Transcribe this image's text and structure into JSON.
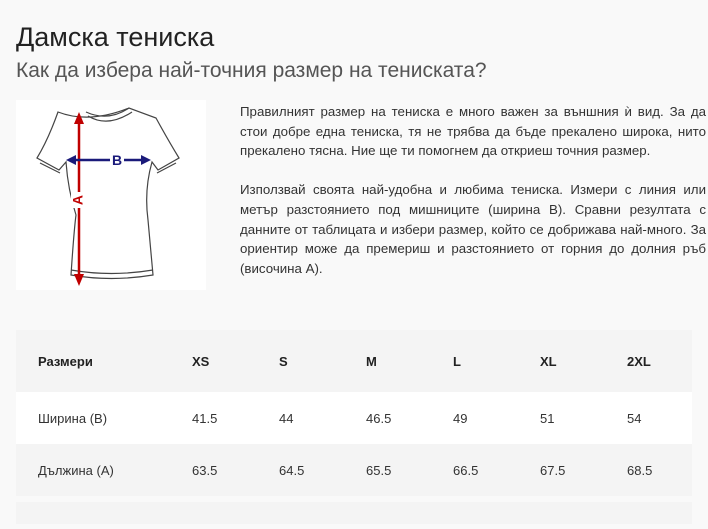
{
  "header": {
    "title": "Дамска тениска",
    "subtitle": "Как да избера най-точния размер на тениската?"
  },
  "diagram": {
    "label_a": "A",
    "label_b": "B",
    "color_a": "#c00000",
    "color_b": "#1a1a7a"
  },
  "text": {
    "p1": "Правилният размер на тениска е много важен за външния ѝ вид. За да стои добре една тениска, тя не трябва да бъде прекалено широка, нито прекалено тясна. Ние ще ти помогнем да откриеш точния размер.",
    "p2": "Използвай своята най-удобна и любима тениска. Измери с линия или метър разстоянието под мишниците (ширина B). Сравни резултата с данните от таблицата и избери размер, който се добрижава най-много. За ориентир може да премериш и разстоянието от горния до долния ръб (височина А)."
  },
  "table": {
    "headers": [
      "Размери",
      "XS",
      "S",
      "M",
      "L",
      "XL",
      "2XL"
    ],
    "rows": [
      [
        "Ширина (B)",
        "41.5",
        "44",
        "46.5",
        "49",
        "51",
        "54"
      ],
      [
        "Дължина (А)",
        "63.5",
        "64.5",
        "65.5",
        "66.5",
        "67.5",
        "68.5"
      ]
    ]
  }
}
